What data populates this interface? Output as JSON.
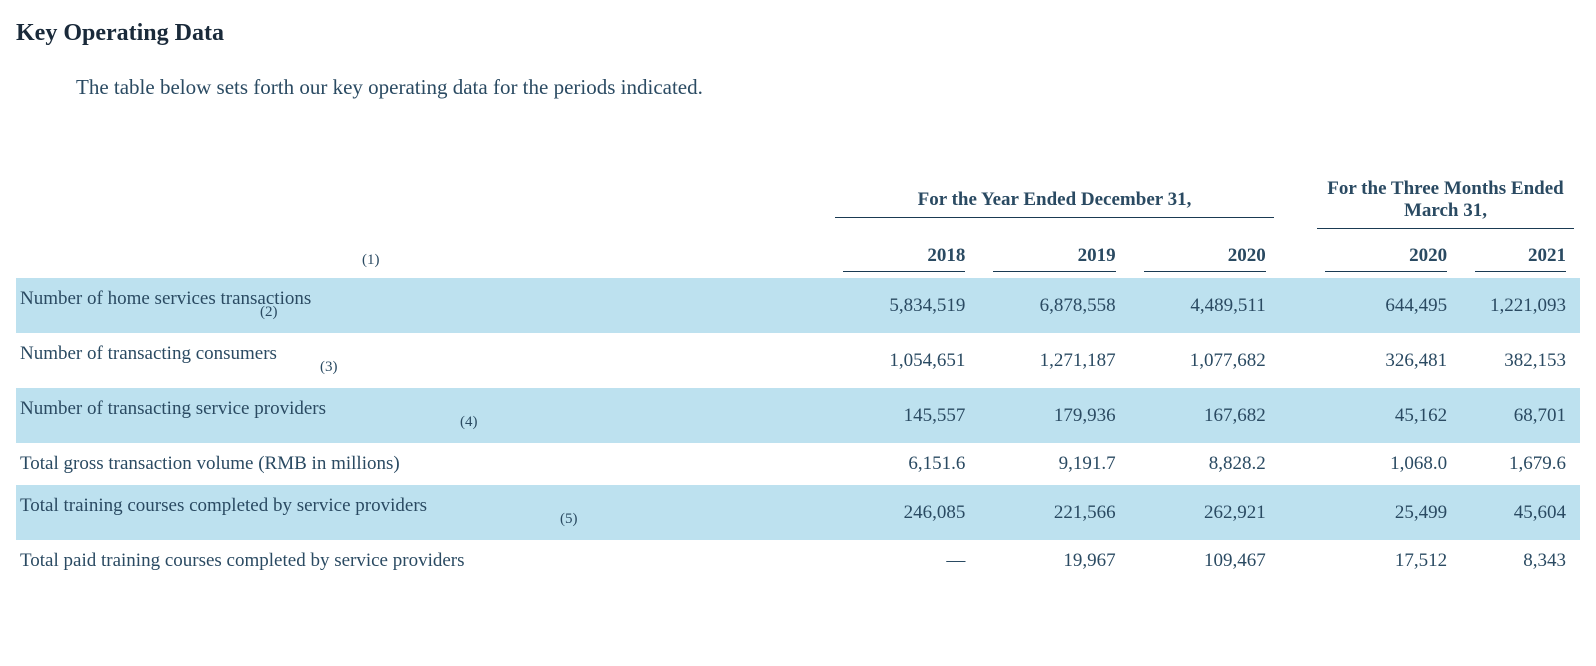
{
  "heading": "Key Operating Data",
  "intro": "The table below sets forth our key operating data for the periods indicated.",
  "table": {
    "stripe_color": "#bde1ef",
    "text_color": "#2a4a62",
    "group_headers": [
      {
        "label": "For the Year Ended December 31,",
        "span": 3
      },
      {
        "label": "For the Three Months Ended March 31,",
        "span": 2
      }
    ],
    "year_headers": [
      "2018",
      "2019",
      "2020",
      "2020",
      "2021"
    ],
    "footnote_row_marker": "(1)",
    "rows": [
      {
        "label": "Number of home services transactions",
        "footnote": "(2)",
        "values": [
          "5,834,519",
          "6,878,558",
          "4,489,511",
          "644,495",
          "1,221,093"
        ],
        "stripe": true
      },
      {
        "label": "Number of transacting consumers",
        "footnote": "(3)",
        "values": [
          "1,054,651",
          "1,271,187",
          "1,077,682",
          "326,481",
          "382,153"
        ],
        "stripe": false
      },
      {
        "label": "Number of transacting service providers",
        "footnote": "(4)",
        "values": [
          "145,557",
          "179,936",
          "167,682",
          "45,162",
          "68,701"
        ],
        "stripe": true
      },
      {
        "label": "Total gross transaction volume (RMB in millions)",
        "footnote": "",
        "values": [
          "6,151.6",
          "9,191.7",
          "8,828.2",
          "1,068.0",
          "1,679.6"
        ],
        "stripe": false
      },
      {
        "label": "Total training courses completed by service providers",
        "footnote": "(5)",
        "values": [
          "246,085",
          "221,566",
          "262,921",
          "25,499",
          "45,604"
        ],
        "stripe": true
      },
      {
        "label": "Total paid training courses completed by service providers",
        "footnote": "",
        "values": [
          "—",
          "19,967",
          "109,467",
          "17,512",
          "8,343"
        ],
        "stripe": false
      }
    ]
  }
}
